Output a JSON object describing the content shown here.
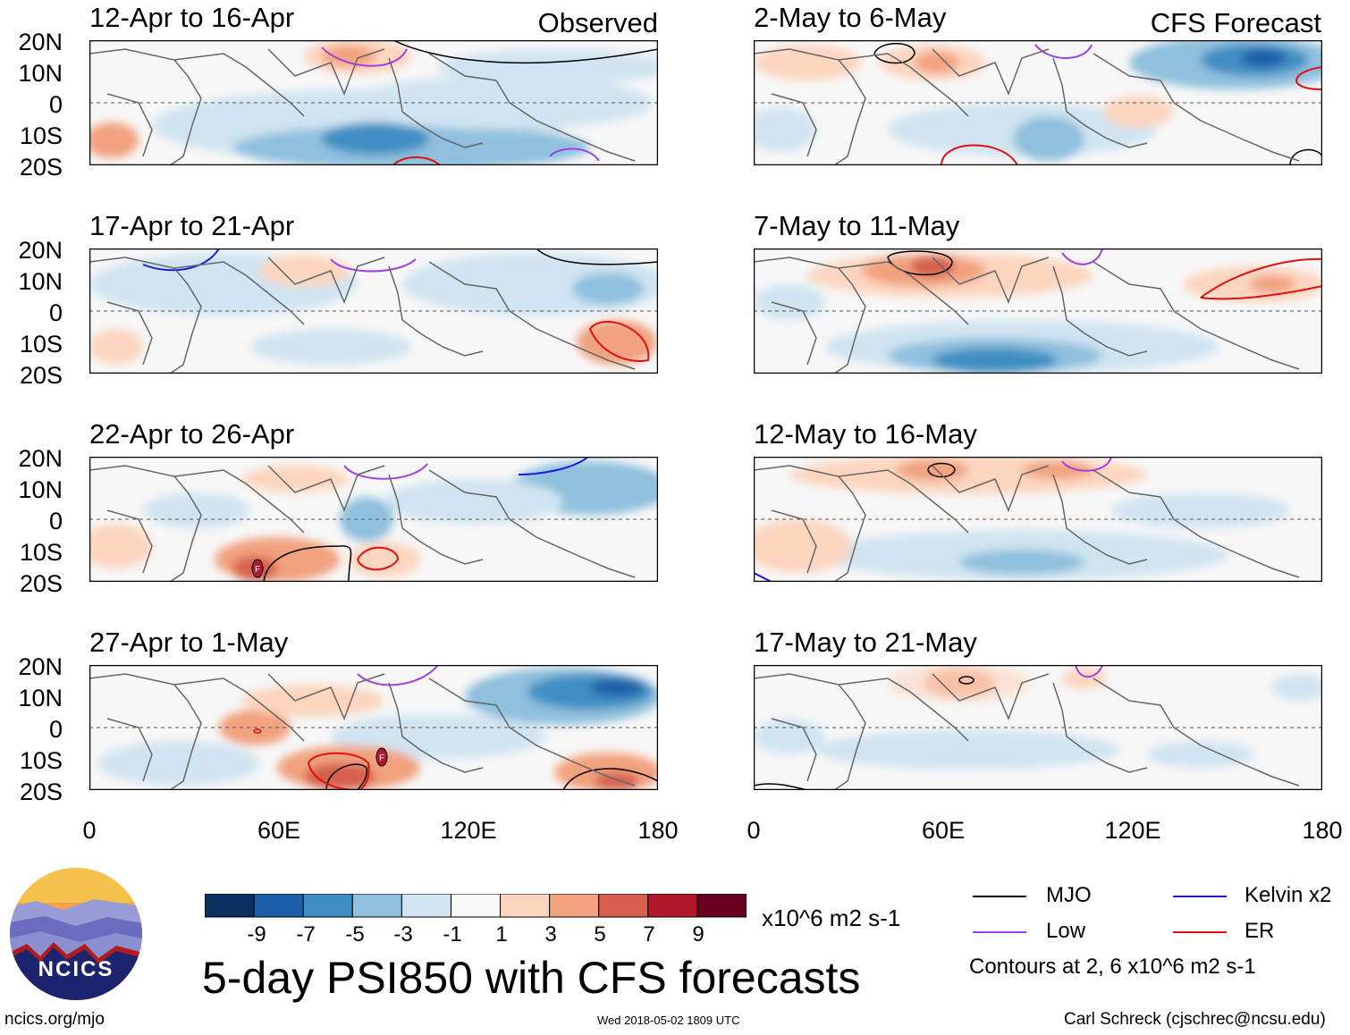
{
  "panel_labels": {
    "observed": "Observed",
    "forecast": "CFS Forecast"
  },
  "panels_left": [
    {
      "title": "12-Apr to 16-Apr"
    },
    {
      "title": "17-Apr to 21-Apr"
    },
    {
      "title": "22-Apr to 26-Apr"
    },
    {
      "title": "27-Apr to 1-May"
    }
  ],
  "panels_right": [
    {
      "title": "2-May to 6-May"
    },
    {
      "title": "7-May to 11-May"
    },
    {
      "title": "12-May to 16-May"
    },
    {
      "title": "17-May to 21-May"
    }
  ],
  "lat_labels": [
    "20N",
    "10N",
    "0",
    "10S",
    "20S"
  ],
  "lon_labels": [
    "0",
    "60E",
    "120E",
    "180"
  ],
  "colorbar": {
    "colors": [
      "#0b2f5e",
      "#1c5fa8",
      "#3f8ec3",
      "#8fc0dd",
      "#d0e4f1",
      "#f8f8f8",
      "#fcd5bf",
      "#f2a27f",
      "#d6604d",
      "#b2182b",
      "#67001f"
    ],
    "tick_labels": [
      "-9",
      "-7",
      "-5",
      "-3",
      "-1",
      "1",
      "3",
      "5",
      "7",
      "9"
    ],
    "units": "x10^6 m2 s-1"
  },
  "main_title": "5-day PSI850 with CFS forecasts",
  "legend": {
    "items": [
      {
        "label": "MJO",
        "color": "#000000"
      },
      {
        "label": "Kelvin x2",
        "color": "#1a1adf"
      },
      {
        "label": "Low",
        "color": "#a040e0"
      },
      {
        "label": "ER",
        "color": "#e01010"
      }
    ],
    "note": "Contours at 2, 6 x10^6 m2 s-1"
  },
  "logo": {
    "text": "NCICS"
  },
  "footer": {
    "url": "ncics.org/mjo",
    "timestamp": "Wed 2018-05-02 1809 UTC",
    "credit": "Carl Schreck (cjschrec@ncsu.edu)"
  },
  "marker_symbol": "F"
}
